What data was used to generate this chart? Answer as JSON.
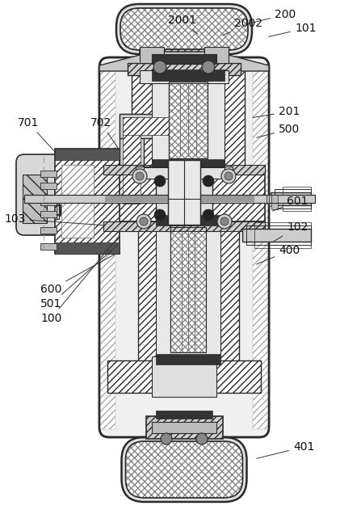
{
  "bg_color": "#ffffff",
  "line_color": "#2a2a2a",
  "hatch_light": "////",
  "hatch_cross": "xxxx",
  "label_fs": 10,
  "label_color": "#111111",
  "labels_info": [
    [
      "200",
      [
        340,
        618
      ],
      [
        305,
        606
      ]
    ],
    [
      "2001",
      [
        208,
        611
      ],
      [
        247,
        592
      ]
    ],
    [
      "2002",
      [
        290,
        607
      ],
      [
        273,
        591
      ]
    ],
    [
      "101",
      [
        365,
        601
      ],
      [
        330,
        590
      ]
    ],
    [
      "201",
      [
        345,
        498
      ],
      [
        310,
        490
      ]
    ],
    [
      "500",
      [
        345,
        476
      ],
      [
        315,
        465
      ]
    ],
    [
      "601",
      [
        355,
        387
      ],
      [
        335,
        374
      ]
    ],
    [
      "102",
      [
        355,
        355
      ],
      [
        335,
        335
      ]
    ],
    [
      "400",
      [
        345,
        326
      ],
      [
        315,
        308
      ]
    ],
    [
      "401",
      [
        363,
        83
      ],
      [
        315,
        68
      ]
    ],
    [
      "103",
      [
        5,
        365
      ],
      [
        133,
        357
      ]
    ],
    [
      "600",
      [
        50,
        278
      ],
      [
        145,
        323
      ]
    ],
    [
      "501",
      [
        50,
        260
      ],
      [
        148,
        335
      ]
    ],
    [
      "100",
      [
        50,
        242
      ],
      [
        150,
        347
      ]
    ],
    [
      "701",
      [
        22,
        484
      ],
      [
        70,
        446
      ]
    ],
    [
      "702",
      [
        112,
        484
      ],
      [
        148,
        450
      ]
    ]
  ]
}
